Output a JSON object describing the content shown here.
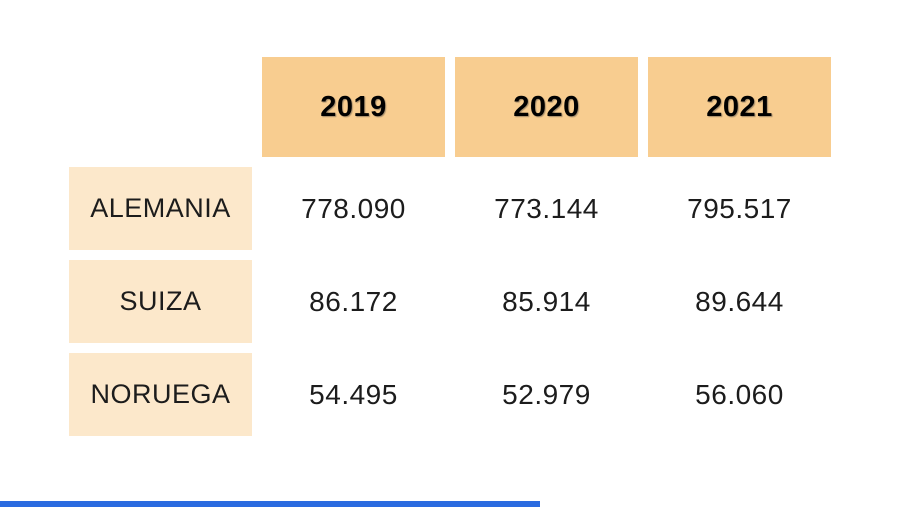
{
  "chart_data": {
    "type": "table",
    "columns": [
      "2019",
      "2020",
      "2021"
    ],
    "rows": [
      {
        "label": "ALEMANIA",
        "values": [
          "778.090",
          "773.144",
          "795.517"
        ]
      },
      {
        "label": "SUIZA",
        "values": [
          "86.172",
          "85.914",
          "89.644"
        ]
      },
      {
        "label": "NORUEGA",
        "values": [
          "54.495",
          "52.979",
          "56.060"
        ]
      }
    ],
    "title": "",
    "legend": "none",
    "grid": "off"
  },
  "colors": {
    "year_header_bg": "#f8cd90",
    "row_label_bg": "#fce8cb",
    "text": "#1c1c1c",
    "year_text": "#000000",
    "background": "#ffffff",
    "progress_bar": "#2a6be0"
  }
}
